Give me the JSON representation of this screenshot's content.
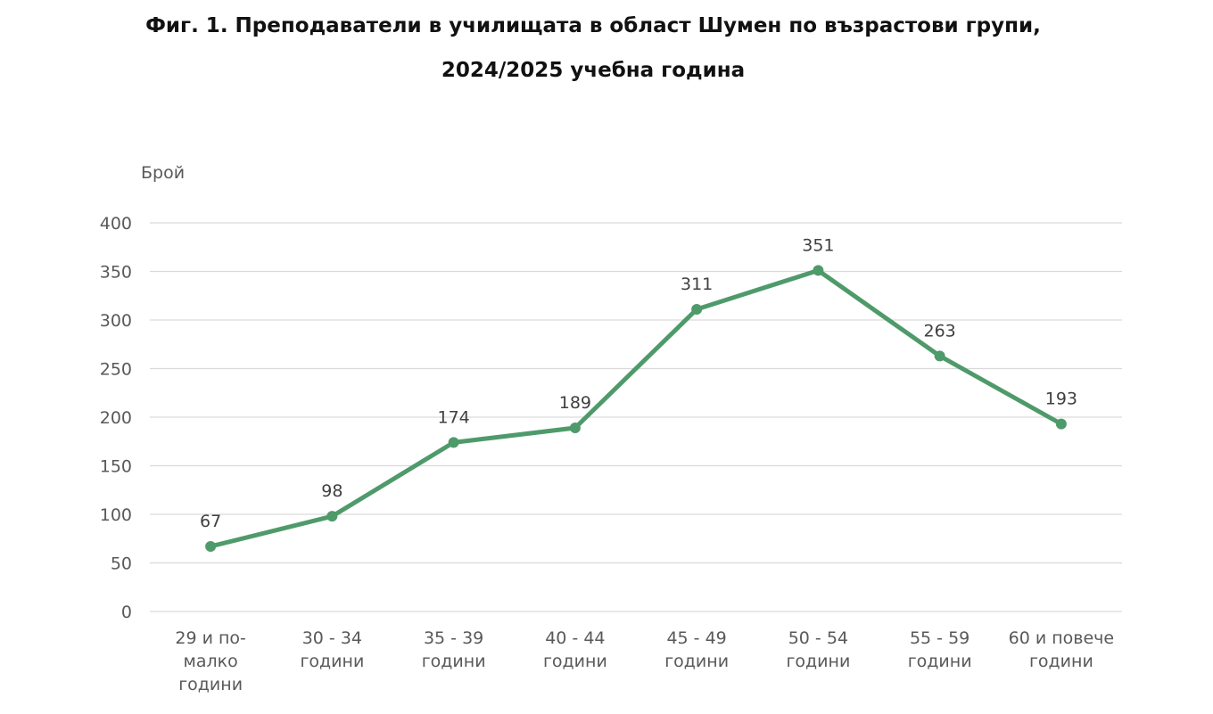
{
  "title": {
    "line1": "Фиг. 1. Преподаватели в училищата в област Шумен по възрастови групи,",
    "line2": "2024/2025 учебна година"
  },
  "colors": {
    "series": "#4f9a6a",
    "grid": "#d9d9d9",
    "axis_text": "#595959"
  },
  "chart_data": {
    "type": "line",
    "title": "Фиг. 1. Преподаватели в училищата в област Шумен по възрастови групи, 2024/2025 учебна година",
    "ylabel": "Брой",
    "xlabel": "",
    "ylim": [
      0,
      400
    ],
    "yticks": [
      0,
      50,
      100,
      150,
      200,
      250,
      300,
      350,
      400
    ],
    "grid": true,
    "legend": "none",
    "categories": [
      [
        "29 и по-",
        "малко",
        "години"
      ],
      [
        "30 - 34",
        "години"
      ],
      [
        "35 - 39",
        "години"
      ],
      [
        "40 - 44",
        "години"
      ],
      [
        "45 - 49",
        "години"
      ],
      [
        "50 - 54",
        "години"
      ],
      [
        "55 - 59",
        "години"
      ],
      [
        "60 и повече",
        "години"
      ]
    ],
    "values": [
      67,
      98,
      174,
      189,
      311,
      351,
      263,
      193
    ]
  }
}
